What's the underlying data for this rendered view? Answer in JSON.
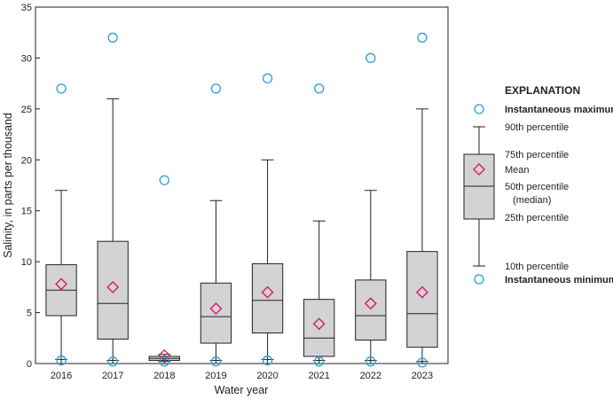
{
  "chart_data": {
    "type": "box",
    "xlabel": "Water year",
    "ylabel": "Salinity, in parts per thousand",
    "ylim": [
      0,
      35
    ],
    "yticks": [
      0,
      5,
      10,
      15,
      20,
      25,
      30,
      35
    ],
    "categories": [
      "2016",
      "2017",
      "2018",
      "2019",
      "2020",
      "2021",
      "2022",
      "2023"
    ],
    "boxes": [
      {
        "year": "2016",
        "p10": 0.4,
        "p25": 4.7,
        "median": 7.2,
        "p75": 9.7,
        "p90": 17,
        "mean": 7.8,
        "min": 0.3,
        "max": 27
      },
      {
        "year": "2017",
        "p10": 0.3,
        "p25": 2.4,
        "median": 5.9,
        "p75": 12,
        "p90": 26,
        "mean": 7.5,
        "min": 0.2,
        "max": 32
      },
      {
        "year": "2018",
        "p10": 0.2,
        "p25": 0.3,
        "median": 0.5,
        "p75": 0.7,
        "p90": 0.9,
        "mean": 0.8,
        "min": 0.2,
        "max": 18
      },
      {
        "year": "2019",
        "p10": 0.3,
        "p25": 2.0,
        "median": 4.6,
        "p75": 7.9,
        "p90": 16,
        "mean": 5.4,
        "min": 0.2,
        "max": 27
      },
      {
        "year": "2020",
        "p10": 0.4,
        "p25": 3.0,
        "median": 6.2,
        "p75": 9.8,
        "p90": 20,
        "mean": 7.0,
        "min": 0.3,
        "max": 28
      },
      {
        "year": "2021",
        "p10": 0.3,
        "p25": 0.7,
        "median": 2.5,
        "p75": 6.3,
        "p90": 14,
        "mean": 3.9,
        "min": 0.2,
        "max": 27
      },
      {
        "year": "2022",
        "p10": 0.3,
        "p25": 2.3,
        "median": 4.7,
        "p75": 8.2,
        "p90": 17,
        "mean": 5.9,
        "min": 0.2,
        "max": 30
      },
      {
        "year": "2023",
        "p10": 0.2,
        "p25": 1.6,
        "median": 4.9,
        "p75": 11,
        "p90": 25,
        "mean": 7.0,
        "min": 0.1,
        "max": 32
      }
    ],
    "colors": {
      "box_fill": "#d3d3d5",
      "box_stroke": "#222222",
      "marker_extreme": "#2a9fd6",
      "marker_mean": "#d81b60"
    },
    "grid": false,
    "legend_position": "right"
  },
  "legend": {
    "title": "EXPLANATION",
    "max_label": "Instantaneous maximum",
    "p90_label": "90th percentile",
    "p75_label": "75th percentile",
    "mean_label": "Mean",
    "median_label_1": "50th percentile",
    "median_label_2": "(median)",
    "p25_label": "25th percentile",
    "p10_label": "10th percentile",
    "min_label": "Instantaneous minimum"
  }
}
